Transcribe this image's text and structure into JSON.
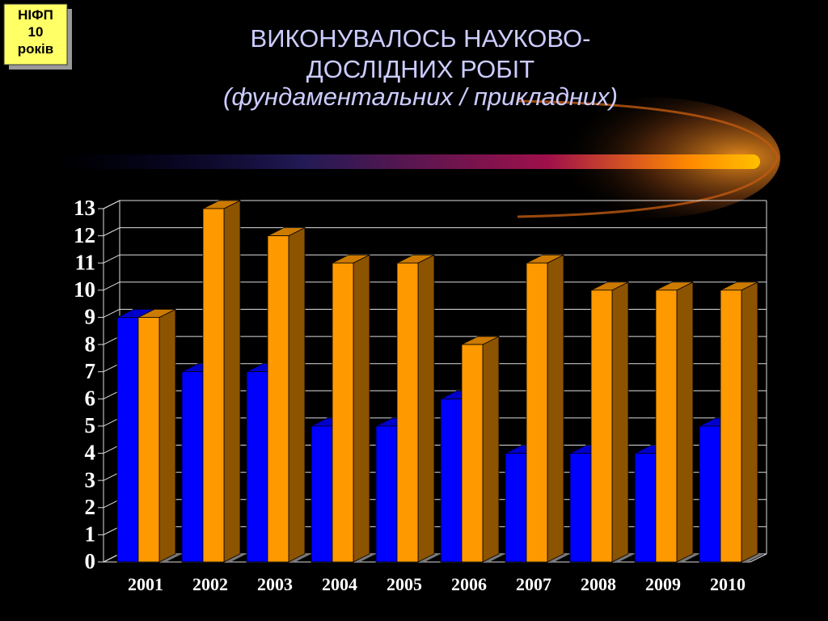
{
  "badge": [
    "НІФП",
    "10",
    "років"
  ],
  "chart_data": {
    "type": "bar3d",
    "title": [
      "ВИКОНУВАЛОСЬ НАУКОВО-",
      "ДОСЛІДНИХ РОБІТ"
    ],
    "subtitle": "(фундаментальних / прикладних)",
    "categories": [
      "2001",
      "2002",
      "2003",
      "2004",
      "2005",
      "2006",
      "2007",
      "2008",
      "2009",
      "2010"
    ],
    "series": [
      {
        "color": "#0000ff",
        "values": [
          9,
          7,
          7,
          5,
          5,
          6,
          4,
          4,
          4,
          5
        ]
      },
      {
        "color": "#ff9900",
        "values": [
          9,
          13,
          12,
          11,
          11,
          8,
          11,
          10,
          10,
          10
        ]
      }
    ],
    "ylim": [
      0,
      13
    ],
    "yticks": [
      0,
      1,
      2,
      3,
      4,
      5,
      6,
      7,
      8,
      9,
      10,
      11,
      12,
      13
    ],
    "grid": true
  }
}
